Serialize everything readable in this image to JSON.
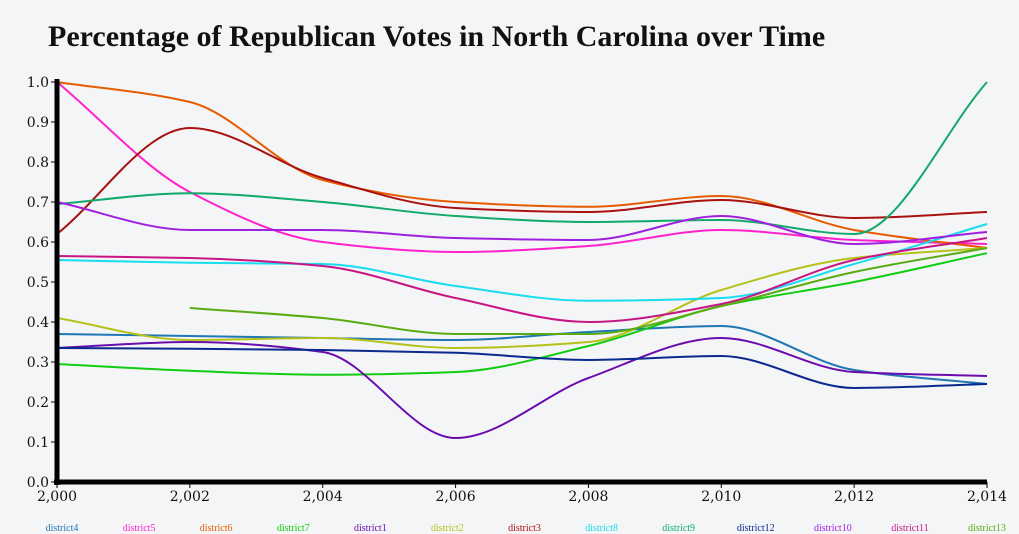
{
  "chart_data": {
    "type": "line",
    "title": "Percentage of Republican Votes in North Carolina over Time",
    "xlabel": "",
    "ylabel": "",
    "xlim": [
      2000,
      2014
    ],
    "ylim": [
      0,
      1.0
    ],
    "x_ticks": [
      "2,000",
      "2,002",
      "2,004",
      "2,006",
      "2,008",
      "2,010",
      "2,012",
      "2,014"
    ],
    "y_ticks": [
      "0.0",
      "0.1",
      "0.2",
      "0.3",
      "0.4",
      "0.5",
      "0.6",
      "0.7",
      "0.8",
      "0.9",
      "1.0"
    ],
    "legend_position": "bottom",
    "x": [
      2000,
      2002,
      2004,
      2006,
      2008,
      2010,
      2012,
      2014
    ],
    "series": [
      {
        "name": "district4",
        "color": "#1f77b4",
        "values": [
          0.37,
          0.365,
          0.36,
          0.355,
          0.375,
          0.39,
          0.28,
          0.245
        ]
      },
      {
        "name": "district5",
        "color": "#ff22cc",
        "values": [
          1.0,
          0.725,
          0.6,
          0.575,
          0.59,
          0.63,
          0.605,
          0.595
        ]
      },
      {
        "name": "district6",
        "color": "#e65c00",
        "values": [
          1.0,
          0.95,
          0.755,
          0.7,
          0.688,
          0.715,
          0.63,
          0.585
        ]
      },
      {
        "name": "district7",
        "color": "#11cc11",
        "values": [
          0.295,
          0.278,
          0.268,
          0.275,
          0.34,
          0.44,
          0.5,
          0.572
        ]
      },
      {
        "name": "district1",
        "color": "#6a0dad",
        "values": [
          0.335,
          0.35,
          0.325,
          0.11,
          0.26,
          0.36,
          0.275,
          0.265
        ]
      },
      {
        "name": "district2",
        "color": "#b5c21a",
        "values": [
          0.41,
          0.355,
          0.36,
          0.335,
          0.35,
          0.48,
          0.56,
          0.585
        ]
      },
      {
        "name": "district3",
        "color": "#aa1111",
        "values": [
          0.62,
          0.885,
          0.76,
          0.685,
          0.675,
          0.705,
          0.66,
          0.675
        ]
      },
      {
        "name": "district8",
        "color": "#18dcef",
        "values": [
          0.555,
          0.548,
          0.545,
          0.49,
          0.453,
          0.46,
          0.545,
          0.645
        ]
      },
      {
        "name": "district9",
        "color": "#12aa6a",
        "values": [
          0.695,
          0.722,
          0.7,
          0.665,
          0.65,
          0.655,
          0.62,
          1.0
        ]
      },
      {
        "name": "district12",
        "color": "#0a2a8f",
        "values": [
          0.335,
          0.333,
          0.33,
          0.323,
          0.305,
          0.315,
          0.235,
          0.245
        ]
      },
      {
        "name": "district10",
        "color": "#a020e0",
        "values": [
          0.7,
          0.63,
          0.63,
          0.61,
          0.605,
          0.665,
          0.595,
          0.625
        ]
      },
      {
        "name": "district11",
        "color": "#c71585",
        "values": [
          0.565,
          0.56,
          0.54,
          0.46,
          0.4,
          0.445,
          0.555,
          0.61
        ]
      },
      {
        "name": "district13",
        "color": "#5aaa11",
        "values": [
          null,
          0.435,
          0.41,
          0.37,
          0.37,
          0.44,
          0.525,
          0.585
        ]
      }
    ]
  }
}
